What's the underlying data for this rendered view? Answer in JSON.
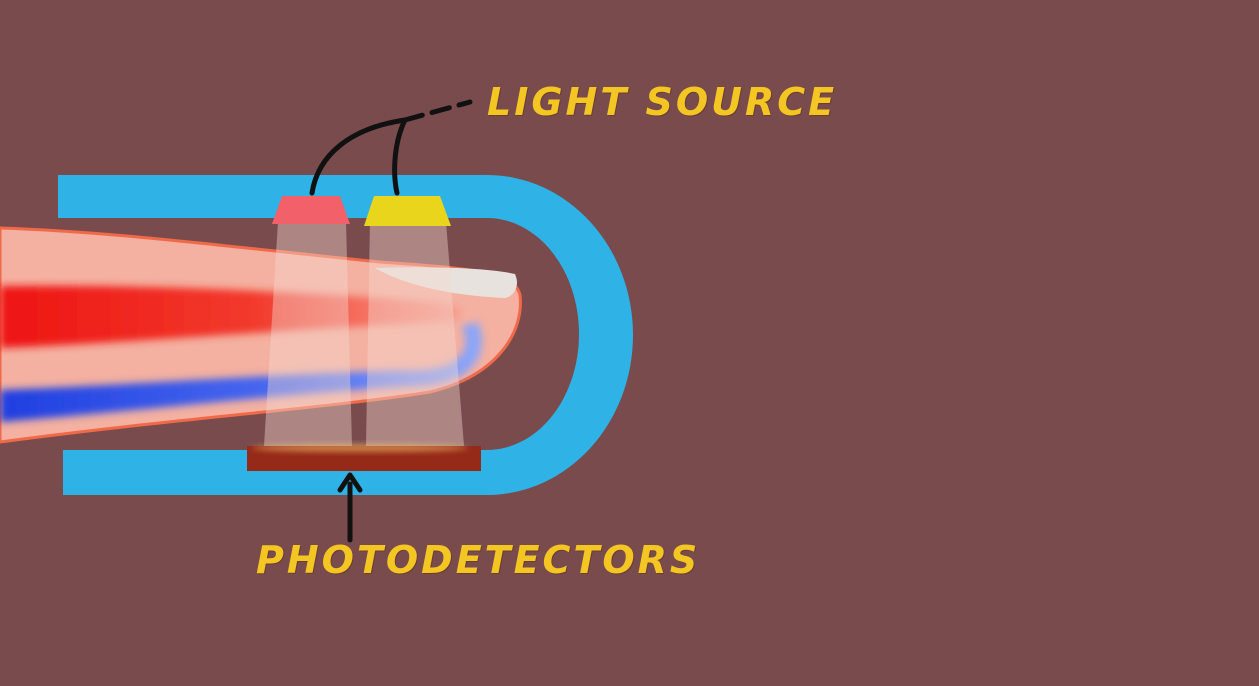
{
  "labels": {
    "light_source": "LIGHT SOURCE",
    "photodetectors": "PHOTODETECTORS"
  },
  "colors": {
    "background": "#7a4b4d",
    "clip": "#2fb2e6",
    "label": "#f4c623",
    "red_led": "#f2606a",
    "yellow_led": "#e8d51c",
    "skin": "#f4b0a0",
    "artery": "#ee1c1c",
    "vein": "#2a4fe0",
    "detector": "#962a18"
  }
}
